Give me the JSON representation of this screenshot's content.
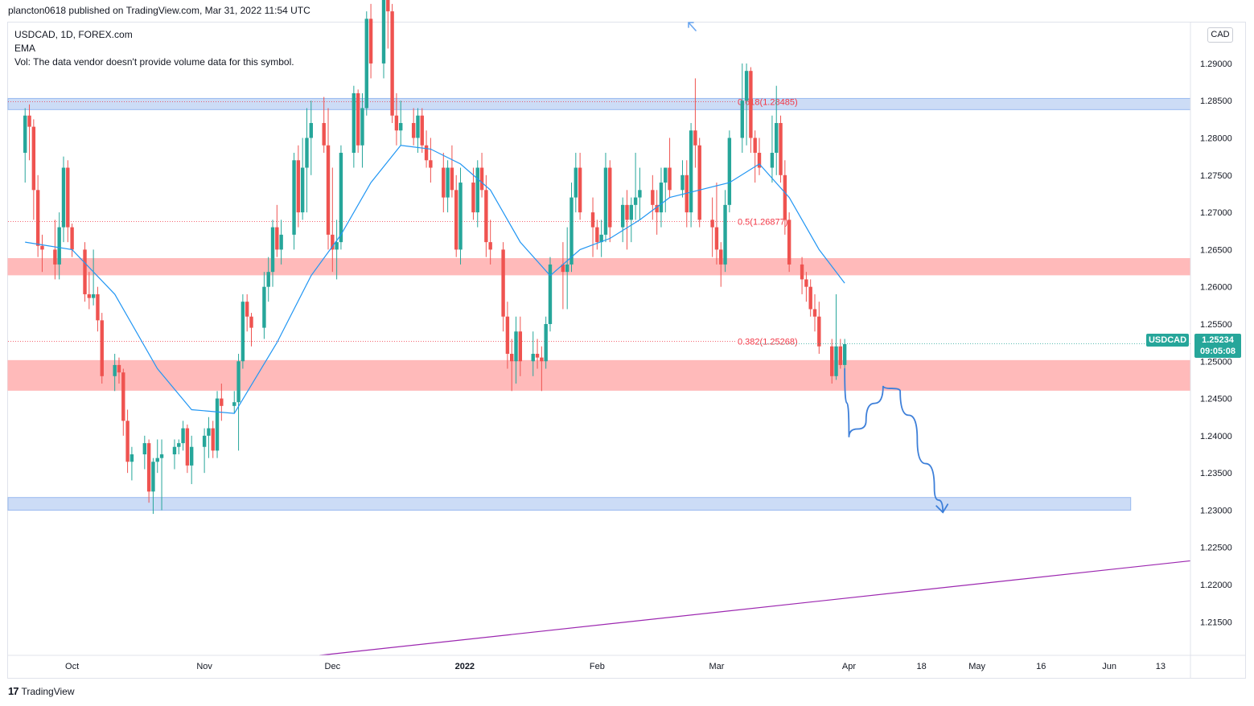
{
  "header": {
    "publisher_line": "plancton0618 published on TradingView.com, Mar 31, 2022 11:54 UTC"
  },
  "legend": {
    "symbol_line": "USDCAD, 1D, FOREX.com",
    "indicator": "EMA",
    "volume_note": "Vol: The data vendor doesn't provide volume data for this symbol."
  },
  "currency_badge": "CAD",
  "last_price": {
    "symbol": "USDCAD",
    "price": "1.25234",
    "countdown": "09:05:08",
    "color": "#26a69a"
  },
  "footer": {
    "brand": "TradingView"
  },
  "colors": {
    "up": "#26a69a",
    "down": "#ef5350",
    "ema": "#2196f3",
    "support_zone": "#ffb3b3",
    "blue_zone": "#c7d9f6",
    "trendline": "#9c27b0",
    "fib": "#f23645"
  },
  "chart_data": {
    "type": "candlestick",
    "symbol": "USDCAD",
    "timeframe": "1D",
    "ylim": [
      1.2105,
      1.2955
    ],
    "y_ticks": [
      "1.29000",
      "1.28500",
      "1.28000",
      "1.27500",
      "1.27000",
      "1.26500",
      "1.26000",
      "1.25500",
      "1.25000",
      "1.24500",
      "1.24000",
      "1.23500",
      "1.23000",
      "1.22500",
      "1.22000",
      "1.21500"
    ],
    "x_ticks": [
      {
        "label": "Oct",
        "date": "2021-10-01"
      },
      {
        "label": "Nov",
        "date": "2021-11-01"
      },
      {
        "label": "Dec",
        "date": "2021-12-01"
      },
      {
        "label": "2022",
        "date": "2022-01-01"
      },
      {
        "label": "Feb",
        "date": "2022-02-01"
      },
      {
        "label": "Mar",
        "date": "2022-03-01"
      },
      {
        "label": "Apr",
        "date": "2022-04-01"
      },
      {
        "label": "18",
        "date": "2022-04-18"
      },
      {
        "label": "May",
        "date": "2022-05-01"
      },
      {
        "label": "16",
        "date": "2022-05-16"
      },
      {
        "label": "Jun",
        "date": "2022-06-01"
      },
      {
        "label": "13",
        "date": "2022-06-13"
      }
    ],
    "candles": [
      [
        "2021-09-20",
        1.278,
        1.284,
        1.274,
        1.283
      ],
      [
        "2021-09-21",
        1.283,
        1.2845,
        1.277,
        1.2815
      ],
      [
        "2021-09-22",
        1.2815,
        1.2825,
        1.269,
        1.273
      ],
      [
        "2021-09-23",
        1.273,
        1.275,
        1.264,
        1.2655
      ],
      [
        "2021-09-24",
        1.2655,
        1.267,
        1.262,
        1.265
      ],
      [
        "2021-09-27",
        1.265,
        1.269,
        1.261,
        1.263
      ],
      [
        "2021-09-28",
        1.263,
        1.27,
        1.261,
        1.268
      ],
      [
        "2021-09-29",
        1.268,
        1.2775,
        1.266,
        1.276
      ],
      [
        "2021-09-30",
        1.276,
        1.277,
        1.266,
        1.268
      ],
      [
        "2021-10-01",
        1.268,
        1.2685,
        1.264,
        1.265
      ],
      [
        "2021-10-04",
        1.265,
        1.266,
        1.258,
        1.259
      ],
      [
        "2021-10-05",
        1.259,
        1.262,
        1.257,
        1.2585
      ],
      [
        "2021-10-06",
        1.2585,
        1.265,
        1.2575,
        1.259
      ],
      [
        "2021-10-07",
        1.259,
        1.26,
        1.254,
        1.2555
      ],
      [
        "2021-10-08",
        1.2555,
        1.2565,
        1.247,
        1.248
      ],
      [
        "2021-10-11",
        1.248,
        1.251,
        1.246,
        1.2495
      ],
      [
        "2021-10-12",
        1.2495,
        1.2505,
        1.247,
        1.2485
      ],
      [
        "2021-10-13",
        1.2485,
        1.249,
        1.24,
        1.242
      ],
      [
        "2021-10-14",
        1.242,
        1.2435,
        1.235,
        1.2365
      ],
      [
        "2021-10-15",
        1.2365,
        1.2385,
        1.234,
        1.2375
      ],
      [
        "2021-10-18",
        1.2375,
        1.24,
        1.2355,
        1.239
      ],
      [
        "2021-10-19",
        1.239,
        1.2395,
        1.231,
        1.2325
      ],
      [
        "2021-10-20",
        1.2325,
        1.237,
        1.2295,
        1.2365
      ],
      [
        "2021-10-21",
        1.2365,
        1.2395,
        1.235,
        1.237
      ],
      [
        "2021-10-22",
        1.237,
        1.2395,
        1.23,
        1.2375
      ],
      [
        "2021-10-25",
        1.2375,
        1.2395,
        1.2355,
        1.2385
      ],
      [
        "2021-10-26",
        1.2385,
        1.2395,
        1.2375,
        1.239
      ],
      [
        "2021-10-27",
        1.239,
        1.242,
        1.238,
        1.241
      ],
      [
        "2021-10-28",
        1.241,
        1.2415,
        1.235,
        1.236
      ],
      [
        "2021-10-29",
        1.236,
        1.24,
        1.2335,
        1.2385
      ],
      [
        "2021-11-01",
        1.2385,
        1.241,
        1.235,
        1.24
      ],
      [
        "2021-11-02",
        1.24,
        1.2425,
        1.237,
        1.241
      ],
      [
        "2021-11-03",
        1.241,
        1.242,
        1.237,
        1.238
      ],
      [
        "2021-11-04",
        1.238,
        1.246,
        1.237,
        1.245
      ],
      [
        "2021-11-05",
        1.245,
        1.247,
        1.242,
        1.244
      ],
      [
        "2021-11-08",
        1.244,
        1.246,
        1.243,
        1.2445
      ],
      [
        "2021-11-09",
        1.2445,
        1.251,
        1.238,
        1.25
      ],
      [
        "2021-11-10",
        1.25,
        1.259,
        1.249,
        1.258
      ],
      [
        "2021-11-11",
        1.258,
        1.259,
        1.254,
        1.256
      ],
      [
        "2021-11-12",
        1.256,
        1.2565,
        1.252,
        1.2545
      ],
      [
        "2021-11-15",
        1.2545,
        1.262,
        1.253,
        1.26
      ],
      [
        "2021-11-16",
        1.26,
        1.264,
        1.258,
        1.262
      ],
      [
        "2021-11-17",
        1.262,
        1.269,
        1.26,
        1.268
      ],
      [
        "2021-11-18",
        1.268,
        1.271,
        1.264,
        1.265
      ],
      [
        "2021-11-19",
        1.265,
        1.269,
        1.263,
        1.267
      ],
      [
        "2021-11-22",
        1.267,
        1.278,
        1.265,
        1.277
      ],
      [
        "2021-11-23",
        1.277,
        1.279,
        1.268,
        1.27
      ],
      [
        "2021-11-24",
        1.27,
        1.28,
        1.269,
        1.276
      ],
      [
        "2021-11-25",
        1.276,
        1.284,
        1.27,
        1.28
      ],
      [
        "2021-11-26",
        1.28,
        1.285,
        1.275,
        1.282
      ],
      [
        "2021-11-29",
        1.282,
        1.2855,
        1.278,
        1.279
      ],
      [
        "2021-11-30",
        1.279,
        1.284,
        1.265,
        1.267
      ],
      [
        "2021-12-01",
        1.267,
        1.276,
        1.262,
        1.265
      ],
      [
        "2021-12-02",
        1.265,
        1.269,
        1.261,
        1.266
      ],
      [
        "2021-12-03",
        1.266,
        1.279,
        1.265,
        1.278
      ],
      [
        "2021-12-06",
        1.278,
        1.287,
        1.276,
        1.286
      ],
      [
        "2021-12-07",
        1.286,
        1.2865,
        1.278,
        1.279
      ],
      [
        "2021-12-08",
        1.279,
        1.286,
        1.276,
        1.284
      ],
      [
        "2021-12-09",
        1.284,
        1.297,
        1.283,
        1.296
      ],
      [
        "2021-12-10",
        1.296,
        1.298,
        1.288,
        1.29
      ],
      [
        "2021-12-13",
        1.29,
        1.3,
        1.288,
        1.299
      ],
      [
        "2021-12-14",
        1.299,
        1.302,
        1.292,
        1.297
      ],
      [
        "2021-12-15",
        1.297,
        1.298,
        1.282,
        1.283
      ],
      [
        "2021-12-16",
        1.283,
        1.286,
        1.279,
        1.281
      ],
      [
        "2021-12-17",
        1.281,
        1.285,
        1.279,
        1.282
      ],
      [
        "2021-12-20",
        1.282,
        1.284,
        1.279,
        1.28
      ],
      [
        "2021-12-21",
        1.28,
        1.284,
        1.278,
        1.283
      ],
      [
        "2021-12-22",
        1.283,
        1.284,
        1.278,
        1.279
      ],
      [
        "2021-12-23",
        1.279,
        1.281,
        1.276,
        1.277
      ],
      [
        "2021-12-24",
        1.277,
        1.28,
        1.274,
        1.276
      ],
      [
        "2021-12-27",
        1.276,
        1.278,
        1.27,
        1.272
      ],
      [
        "2021-12-28",
        1.272,
        1.277,
        1.27,
        1.276
      ],
      [
        "2021-12-29",
        1.276,
        1.279,
        1.272,
        1.273
      ],
      [
        "2021-12-30",
        1.273,
        1.275,
        1.264,
        1.265
      ],
      [
        "2021-12-31",
        1.265,
        1.276,
        1.263,
        1.274
      ],
      [
        "2022-01-03",
        1.274,
        1.276,
        1.269,
        1.27
      ],
      [
        "2022-01-04",
        1.27,
        1.277,
        1.268,
        1.276
      ],
      [
        "2022-01-05",
        1.276,
        1.278,
        1.272,
        1.273
      ],
      [
        "2022-01-06",
        1.273,
        1.275,
        1.264,
        1.266
      ],
      [
        "2022-01-07",
        1.266,
        1.269,
        1.263,
        1.265
      ],
      [
        "2022-01-10",
        1.265,
        1.266,
        1.254,
        1.256
      ],
      [
        "2022-01-11",
        1.256,
        1.258,
        1.249,
        1.251
      ],
      [
        "2022-01-12",
        1.251,
        1.253,
        1.246,
        1.25
      ],
      [
        "2022-01-13",
        1.25,
        1.256,
        1.247,
        1.254
      ],
      [
        "2022-01-14",
        1.254,
        1.256,
        1.248,
        1.25
      ],
      [
        "2022-01-17",
        1.25,
        1.254,
        1.248,
        1.251
      ],
      [
        "2022-01-18",
        1.251,
        1.253,
        1.249,
        1.2505
      ],
      [
        "2022-01-19",
        1.2505,
        1.252,
        1.246,
        1.25
      ],
      [
        "2022-01-20",
        1.25,
        1.256,
        1.249,
        1.255
      ],
      [
        "2022-01-21",
        1.255,
        1.264,
        1.254,
        1.263
      ],
      [
        "2022-01-24",
        1.263,
        1.266,
        1.257,
        1.262
      ],
      [
        "2022-01-25",
        1.262,
        1.268,
        1.257,
        1.263
      ],
      [
        "2022-01-26",
        1.263,
        1.274,
        1.262,
        1.272
      ],
      [
        "2022-01-27",
        1.272,
        1.278,
        1.27,
        1.276
      ],
      [
        "2022-01-28",
        1.276,
        1.278,
        1.269,
        1.27
      ],
      [
        "2022-01-31",
        1.27,
        1.272,
        1.264,
        1.268
      ],
      [
        "2022-02-01",
        1.268,
        1.269,
        1.265,
        1.266
      ],
      [
        "2022-02-02",
        1.266,
        1.269,
        1.264,
        1.267
      ],
      [
        "2022-02-03",
        1.267,
        1.278,
        1.266,
        1.276
      ],
      [
        "2022-02-04",
        1.276,
        1.277,
        1.266,
        1.268
      ],
      [
        "2022-02-07",
        1.268,
        1.272,
        1.266,
        1.271
      ],
      [
        "2022-02-08",
        1.271,
        1.273,
        1.265,
        1.269
      ],
      [
        "2022-02-09",
        1.269,
        1.272,
        1.266,
        1.271
      ],
      [
        "2022-02-10",
        1.271,
        1.278,
        1.269,
        1.272
      ],
      [
        "2022-02-11",
        1.272,
        1.276,
        1.269,
        1.273
      ],
      [
        "2022-02-14",
        1.273,
        1.275,
        1.269,
        1.271
      ],
      [
        "2022-02-15",
        1.271,
        1.273,
        1.267,
        1.27
      ],
      [
        "2022-02-16",
        1.27,
        1.276,
        1.268,
        1.274
      ],
      [
        "2022-02-17",
        1.274,
        1.276,
        1.27,
        1.276
      ],
      [
        "2022-02-18",
        1.276,
        1.28,
        1.272,
        1.273
      ],
      [
        "2022-02-21",
        1.273,
        1.277,
        1.272,
        1.275
      ],
      [
        "2022-02-22",
        1.275,
        1.277,
        1.268,
        1.27
      ],
      [
        "2022-02-23",
        1.27,
        1.282,
        1.268,
        1.281
      ],
      [
        "2022-02-24",
        1.281,
        1.288,
        1.276,
        1.279
      ],
      [
        "2022-02-25",
        1.279,
        1.28,
        1.268,
        1.269
      ],
      [
        "2022-02-28",
        1.269,
        1.272,
        1.264,
        1.268
      ],
      [
        "2022-03-01",
        1.268,
        1.274,
        1.263,
        1.265
      ],
      [
        "2022-03-02",
        1.265,
        1.266,
        1.26,
        1.263
      ],
      [
        "2022-03-03",
        1.263,
        1.273,
        1.262,
        1.271
      ],
      [
        "2022-03-04",
        1.271,
        1.281,
        1.27,
        1.28
      ],
      [
        "2022-03-07",
        1.28,
        1.29,
        1.278,
        1.285
      ],
      [
        "2022-03-08",
        1.285,
        1.29,
        1.279,
        1.289
      ],
      [
        "2022-03-09",
        1.289,
        1.2895,
        1.278,
        1.28
      ],
      [
        "2022-03-10",
        1.28,
        1.281,
        1.274,
        1.278
      ],
      [
        "2022-03-11",
        1.278,
        1.28,
        1.275,
        1.276
      ],
      [
        "2022-03-14",
        1.276,
        1.283,
        1.274,
        1.278
      ],
      [
        "2022-03-15",
        1.278,
        1.287,
        1.275,
        1.282
      ],
      [
        "2022-03-16",
        1.282,
        1.283,
        1.274,
        1.275
      ],
      [
        "2022-03-17",
        1.275,
        1.277,
        1.267,
        1.269
      ],
      [
        "2022-03-18",
        1.269,
        1.27,
        1.262,
        1.263
      ],
      [
        "2022-03-21",
        1.263,
        1.264,
        1.259,
        1.261
      ],
      [
        "2022-03-22",
        1.261,
        1.262,
        1.258,
        1.26
      ],
      [
        "2022-03-23",
        1.26,
        1.261,
        1.256,
        1.257
      ],
      [
        "2022-03-24",
        1.257,
        1.259,
        1.254,
        1.256
      ],
      [
        "2022-03-25",
        1.256,
        1.258,
        1.251,
        1.252
      ],
      [
        "2022-03-28",
        1.252,
        1.253,
        1.247,
        1.248
      ],
      [
        "2022-03-29",
        1.248,
        1.259,
        1.2475,
        1.252
      ],
      [
        "2022-03-30",
        1.252,
        1.253,
        1.249,
        1.2495
      ],
      [
        "2022-03-31",
        1.2495,
        1.253,
        1.248,
        1.2523
      ]
    ],
    "ema": [
      [
        "2021-09-20",
        1.266
      ],
      [
        "2021-10-01",
        1.265
      ],
      [
        "2021-10-11",
        1.259
      ],
      [
        "2021-10-21",
        1.249
      ],
      [
        "2021-10-29",
        1.2435
      ],
      [
        "2021-11-08",
        1.243
      ],
      [
        "2021-11-18",
        1.2525
      ],
      [
        "2021-11-26",
        1.2615
      ],
      [
        "2021-12-03",
        1.267
      ],
      [
        "2021-12-10",
        1.274
      ],
      [
        "2021-12-17",
        1.279
      ],
      [
        "2021-12-24",
        1.2785
      ],
      [
        "2021-12-31",
        1.2765
      ],
      [
        "2022-01-07",
        1.273
      ],
      [
        "2022-01-14",
        1.266
      ],
      [
        "2022-01-21",
        1.2615
      ],
      [
        "2022-01-28",
        1.265
      ],
      [
        "2022-02-04",
        1.2665
      ],
      [
        "2022-02-11",
        1.269
      ],
      [
        "2022-02-18",
        1.272
      ],
      [
        "2022-02-25",
        1.273
      ],
      [
        "2022-03-04",
        1.274
      ],
      [
        "2022-03-11",
        1.2765
      ],
      [
        "2022-03-18",
        1.272
      ],
      [
        "2022-03-25",
        1.265
      ],
      [
        "2022-03-31",
        1.2605
      ]
    ],
    "fib_levels": [
      {
        "label": "0.618(1.28485)",
        "price": 1.28485
      },
      {
        "label": "0.5(1.26877)",
        "price": 1.26877
      },
      {
        "label": "0.382(1.25268)",
        "price": 1.25268
      }
    ],
    "zones": [
      {
        "kind": "resistance-blue",
        "from_date": "2021-09-16",
        "to_date": "2022-06-20",
        "low": 1.2838,
        "high": 1.2853
      },
      {
        "kind": "pink",
        "from_date": "2021-09-16",
        "to_date": "2022-06-20",
        "low": 1.2616,
        "high": 1.2638
      },
      {
        "kind": "pink",
        "from_date": "2021-09-16",
        "to_date": "2022-06-20",
        "low": 1.2461,
        "high": 1.2501
      },
      {
        "kind": "support-blue",
        "from_date": "2021-09-16",
        "to_date": "2022-06-06",
        "low": 1.23,
        "high": 1.2317
      }
    ],
    "trendline": [
      [
        "2021-11-28",
        1.2105
      ],
      [
        "2022-06-20",
        1.2232
      ]
    ],
    "projection": [
      [
        "2022-03-31",
        1.249
      ],
      [
        "2022-04-01",
        1.2398
      ],
      [
        "2022-04-05",
        1.242
      ],
      [
        "2022-04-09",
        1.2467
      ],
      [
        "2022-04-13",
        1.246
      ],
      [
        "2022-04-17",
        1.2395
      ],
      [
        "2022-04-21",
        1.233
      ],
      [
        "2022-04-23",
        1.2297
      ]
    ],
    "last_price": 1.25234,
    "grid": false,
    "legend_position": "top-left"
  }
}
